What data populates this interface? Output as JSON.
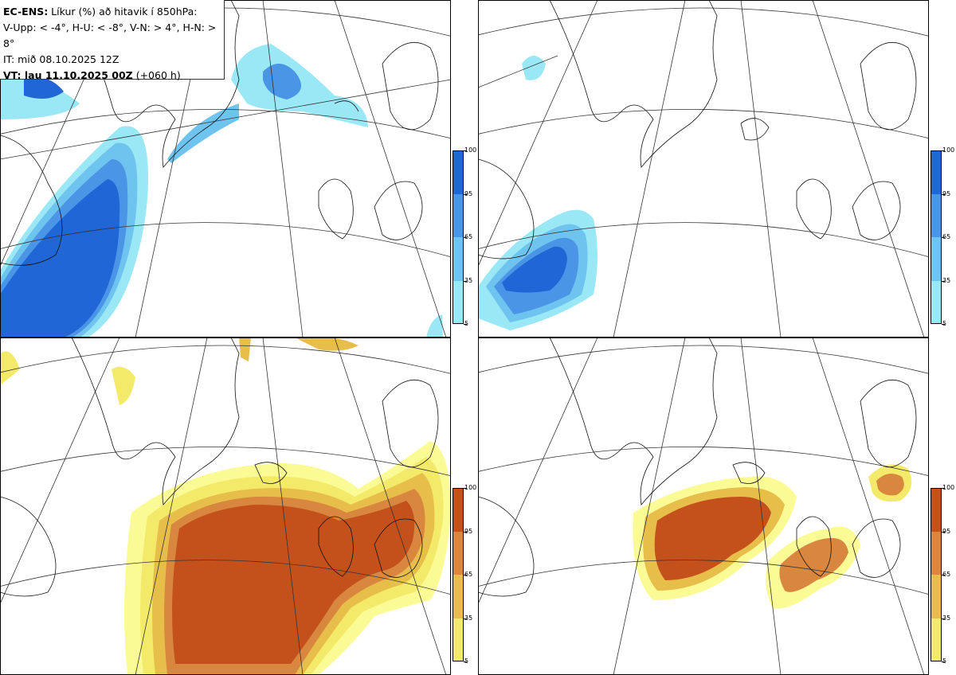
{
  "header": {
    "line1_bold": "EC-ENS:",
    "line1_rest": " Líkur (%) að hitavik í 850hPa:",
    "line2": "V-Upp: < -4°, H-U: < -8°, V-N: > 4°, H-N: > 8°",
    "line3": "IT: mið 08.10.2025 12Z",
    "line4_bold": "VT: lau 11.10.2025 00Z",
    "line4_rest": " (+060 h)"
  },
  "colorbars": {
    "labels": [
      "100",
      "95",
      "65",
      "35",
      "5"
    ],
    "cold_colors": [
      "#2166d6",
      "#4a95e6",
      "#6fc3ef",
      "#9ae8f5",
      "#bff8fa"
    ],
    "warm_colors": [
      "#c4511c",
      "#d9873f",
      "#e8be4a",
      "#f4ea6a",
      "#fbfb96"
    ]
  },
  "panels": [
    {
      "name": "cold-anomaly-4",
      "scheme": "cold"
    },
    {
      "name": "cold-anomaly-8",
      "scheme": "cold"
    },
    {
      "name": "warm-anomaly-4",
      "scheme": "warm"
    },
    {
      "name": "warm-anomaly-8",
      "scheme": "warm"
    }
  ]
}
